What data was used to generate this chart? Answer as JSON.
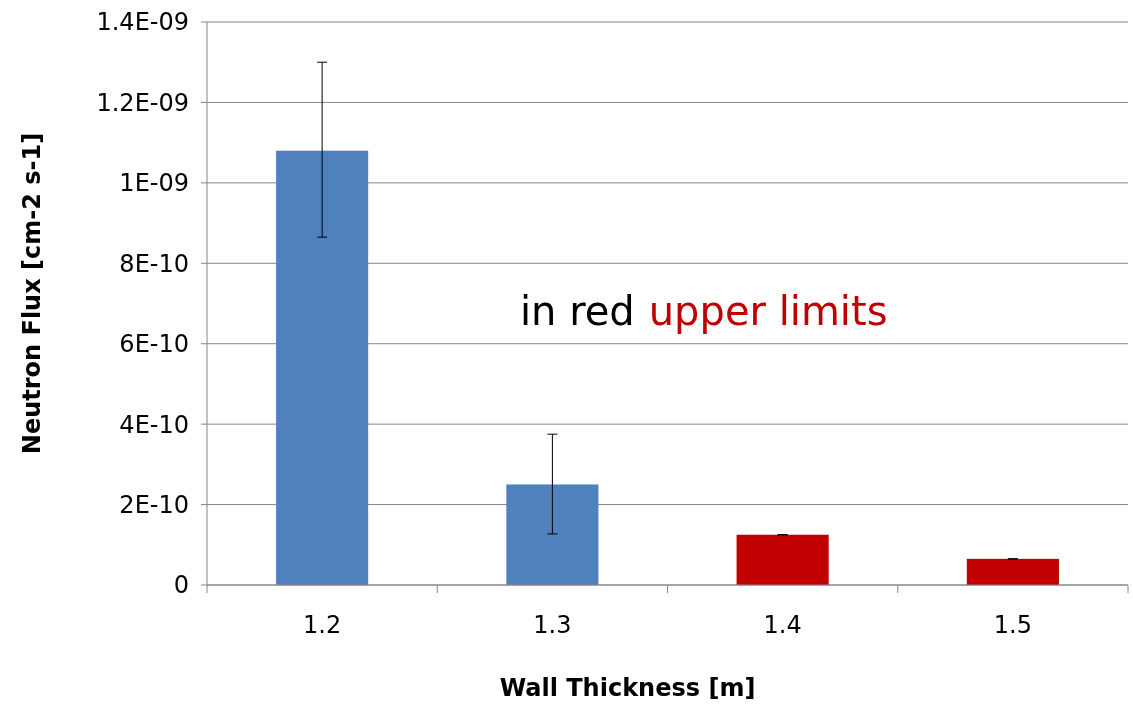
{
  "chart_data": {
    "type": "bar",
    "xlabel": "Wall Thickness [m]",
    "ylabel": "Neutron Flux [cm-2 s-1]",
    "categories": [
      "1.2",
      "1.3",
      "1.4",
      "1.5"
    ],
    "values": [
      1.08e-09,
      2.5e-10,
      1.25e-10,
      6.5e-11
    ],
    "colors": [
      "#4f81bd",
      "#4f81bd",
      "#c00000",
      "#c00000"
    ],
    "errors": [
      [
        8.65e-10,
        1.3e-09
      ],
      [
        1.27e-10,
        3.75e-10
      ],
      [
        1.25e-10,
        1.25e-10
      ],
      [
        6.5e-11,
        6.5e-11
      ]
    ],
    "ylim": [
      0,
      1.4e-09
    ],
    "yticks": [
      0,
      {
        "value": 2e-10,
        "label": "2E-10"
      },
      {
        "value": 4e-10,
        "label": "4E-10"
      },
      {
        "value": 6e-10,
        "label": "6E-10"
      },
      {
        "value": 8e-10,
        "label": "8E-10"
      },
      {
        "value": 1e-09,
        "label": "1E-09"
      },
      {
        "value": 1.2e-09,
        "label": "1.2E-09"
      },
      {
        "value": 1.4e-09,
        "label": "1.4E-09"
      }
    ],
    "grid": "y",
    "annotations": [
      "in red",
      "upper limits"
    ]
  }
}
